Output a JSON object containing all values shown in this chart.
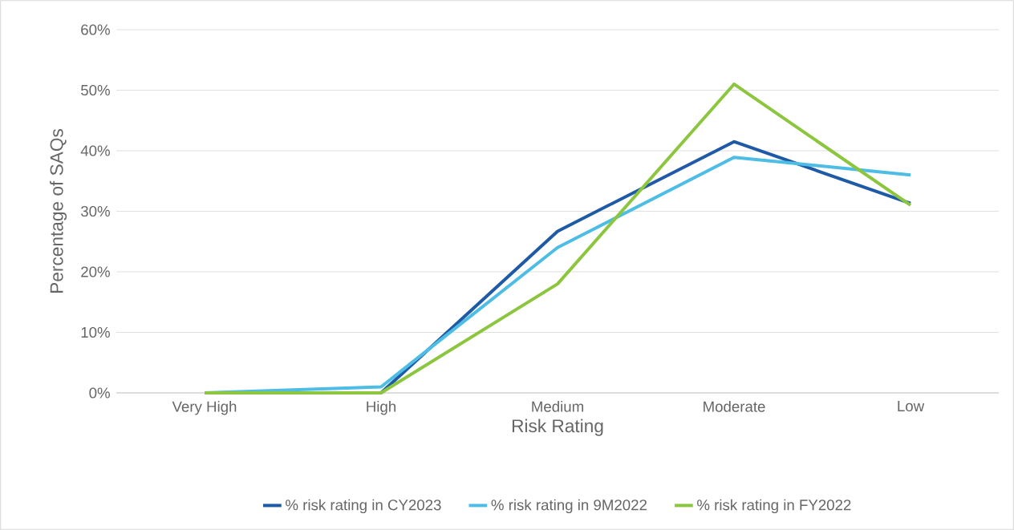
{
  "chart_data": {
    "type": "line",
    "xlabel": "Risk Rating",
    "ylabel": "Percentage of SAQs",
    "categories": [
      "Very High",
      "High",
      "Medium",
      "Moderate",
      "Low"
    ],
    "series": [
      {
        "name": "% risk rating in CY2023",
        "color": "#1f5aa6",
        "values": [
          0,
          0,
          26.7,
          41.5,
          31.3
        ]
      },
      {
        "name": "% risk rating in 9M2022",
        "color": "#4dbde6",
        "values": [
          0,
          1,
          24,
          38.9,
          36
        ]
      },
      {
        "name": "% risk rating in  FY2022",
        "color": "#8cc63f",
        "values": [
          0,
          0,
          18,
          51,
          31
        ]
      }
    ],
    "ylim": [
      0,
      60
    ],
    "yticks": [
      {
        "value": 0,
        "label": "0%"
      },
      {
        "value": 10,
        "label": "10%"
      },
      {
        "value": 20,
        "label": "20%"
      },
      {
        "value": 30,
        "label": "30%"
      },
      {
        "value": 40,
        "label": "40%"
      },
      {
        "value": 50,
        "label": "50%"
      },
      {
        "value": 60,
        "label": "60%"
      }
    ],
    "grid": "y",
    "legend": "bottom",
    "marker": "none",
    "line_style": "solid"
  }
}
